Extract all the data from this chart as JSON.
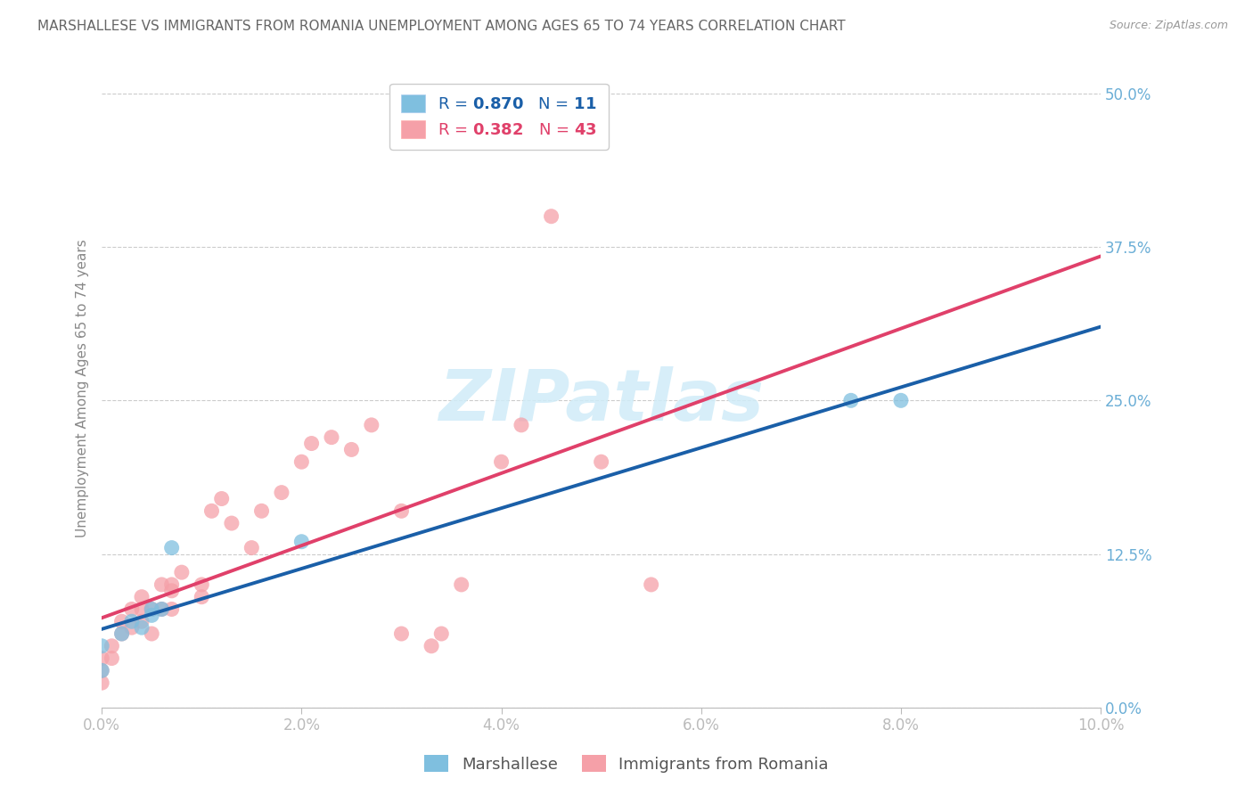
{
  "title": "MARSHALLESE VS IMMIGRANTS FROM ROMANIA UNEMPLOYMENT AMONG AGES 65 TO 74 YEARS CORRELATION CHART",
  "source": "Source: ZipAtlas.com",
  "ylabel_label": "Unemployment Among Ages 65 to 74 years",
  "marshallese_x": [
    0.0,
    0.0,
    0.002,
    0.003,
    0.004,
    0.005,
    0.005,
    0.006,
    0.007,
    0.02,
    0.075,
    0.08
  ],
  "marshallese_y": [
    0.03,
    0.05,
    0.06,
    0.07,
    0.065,
    0.075,
    0.08,
    0.08,
    0.13,
    0.135,
    0.25,
    0.25
  ],
  "romania_x": [
    0.0,
    0.0,
    0.0,
    0.001,
    0.001,
    0.002,
    0.002,
    0.003,
    0.003,
    0.004,
    0.004,
    0.004,
    0.005,
    0.005,
    0.006,
    0.006,
    0.007,
    0.007,
    0.007,
    0.008,
    0.01,
    0.01,
    0.011,
    0.012,
    0.013,
    0.015,
    0.016,
    0.018,
    0.02,
    0.021,
    0.023,
    0.025,
    0.027,
    0.03,
    0.03,
    0.033,
    0.034,
    0.036,
    0.04,
    0.042,
    0.045,
    0.05,
    0.055
  ],
  "romania_y": [
    0.02,
    0.03,
    0.04,
    0.04,
    0.05,
    0.06,
    0.07,
    0.065,
    0.08,
    0.07,
    0.08,
    0.09,
    0.06,
    0.08,
    0.08,
    0.1,
    0.08,
    0.095,
    0.1,
    0.11,
    0.09,
    0.1,
    0.16,
    0.17,
    0.15,
    0.13,
    0.16,
    0.175,
    0.2,
    0.215,
    0.22,
    0.21,
    0.23,
    0.16,
    0.06,
    0.05,
    0.06,
    0.1,
    0.2,
    0.23,
    0.4,
    0.2,
    0.1
  ],
  "blue_color": "#7fbfdf",
  "blue_line_color": "#1a5fa8",
  "blue_dash_color": "#aaaaaa",
  "pink_color": "#f5a0a8",
  "pink_line_color": "#e0406a",
  "bg_color": "#ffffff",
  "grid_color": "#cccccc",
  "title_color": "#666666",
  "source_color": "#999999",
  "axis_tick_color": "#6baed6",
  "ylabel_color": "#888888",
  "legend_text_blue": "#1a5fa8",
  "legend_text_pink": "#e0406a",
  "watermark_color": "#d0ecf8",
  "xlim": [
    0.0,
    0.1
  ],
  "ylim": [
    0.0,
    0.52
  ],
  "yticks": [
    0.0,
    0.125,
    0.25,
    0.375,
    0.5
  ],
  "ytick_labels": [
    "0.0%",
    "12.5%",
    "25.0%",
    "37.5%",
    "50.0%"
  ],
  "xticks": [
    0.0,
    0.02,
    0.04,
    0.06,
    0.08,
    0.1
  ],
  "xtick_labels": [
    "0.0%",
    "2.0%",
    "4.0%",
    "6.0%",
    "8.0%",
    "10.0%"
  ]
}
